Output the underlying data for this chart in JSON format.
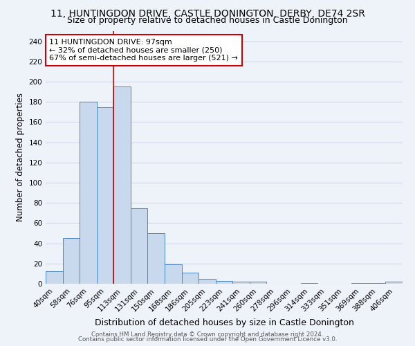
{
  "title": "11, HUNTINGDON DRIVE, CASTLE DONINGTON, DERBY, DE74 2SR",
  "subtitle": "Size of property relative to detached houses in Castle Donington",
  "xlabel": "Distribution of detached houses by size in Castle Donington",
  "ylabel": "Number of detached properties",
  "bar_labels": [
    "40sqm",
    "58sqm",
    "76sqm",
    "95sqm",
    "113sqm",
    "131sqm",
    "150sqm",
    "168sqm",
    "186sqm",
    "205sqm",
    "223sqm",
    "241sqm",
    "260sqm",
    "278sqm",
    "296sqm",
    "314sqm",
    "333sqm",
    "351sqm",
    "369sqm",
    "388sqm",
    "406sqm"
  ],
  "bar_values": [
    12,
    45,
    180,
    175,
    195,
    75,
    50,
    19,
    11,
    5,
    3,
    2,
    2,
    0,
    0,
    1,
    0,
    0,
    1,
    1,
    2
  ],
  "bar_color": "#c8d9ee",
  "bar_edge_color": "#4a86c8",
  "ylim": [
    0,
    250
  ],
  "yticks": [
    0,
    20,
    40,
    60,
    80,
    100,
    120,
    140,
    160,
    180,
    200,
    220,
    240
  ],
  "annotation_title": "11 HUNTINGDON DRIVE: 97sqm",
  "annotation_line1": "← 32% of detached houses are smaller (250)",
  "annotation_line2": "67% of semi-detached houses are larger (521) →",
  "vline_x_index": 3.5,
  "footnote1": "Contains HM Land Registry data © Crown copyright and database right 2024.",
  "footnote2": "Contains public sector information licensed under the Open Government Licence v3.0.",
  "bg_color": "#eef2f9",
  "grid_color": "#d0d8e8",
  "title_fontsize": 10,
  "subtitle_fontsize": 9,
  "xlabel_fontsize": 9,
  "ylabel_fontsize": 8.5,
  "tick_fontsize": 7.5,
  "footnote_fontsize": 6.2
}
